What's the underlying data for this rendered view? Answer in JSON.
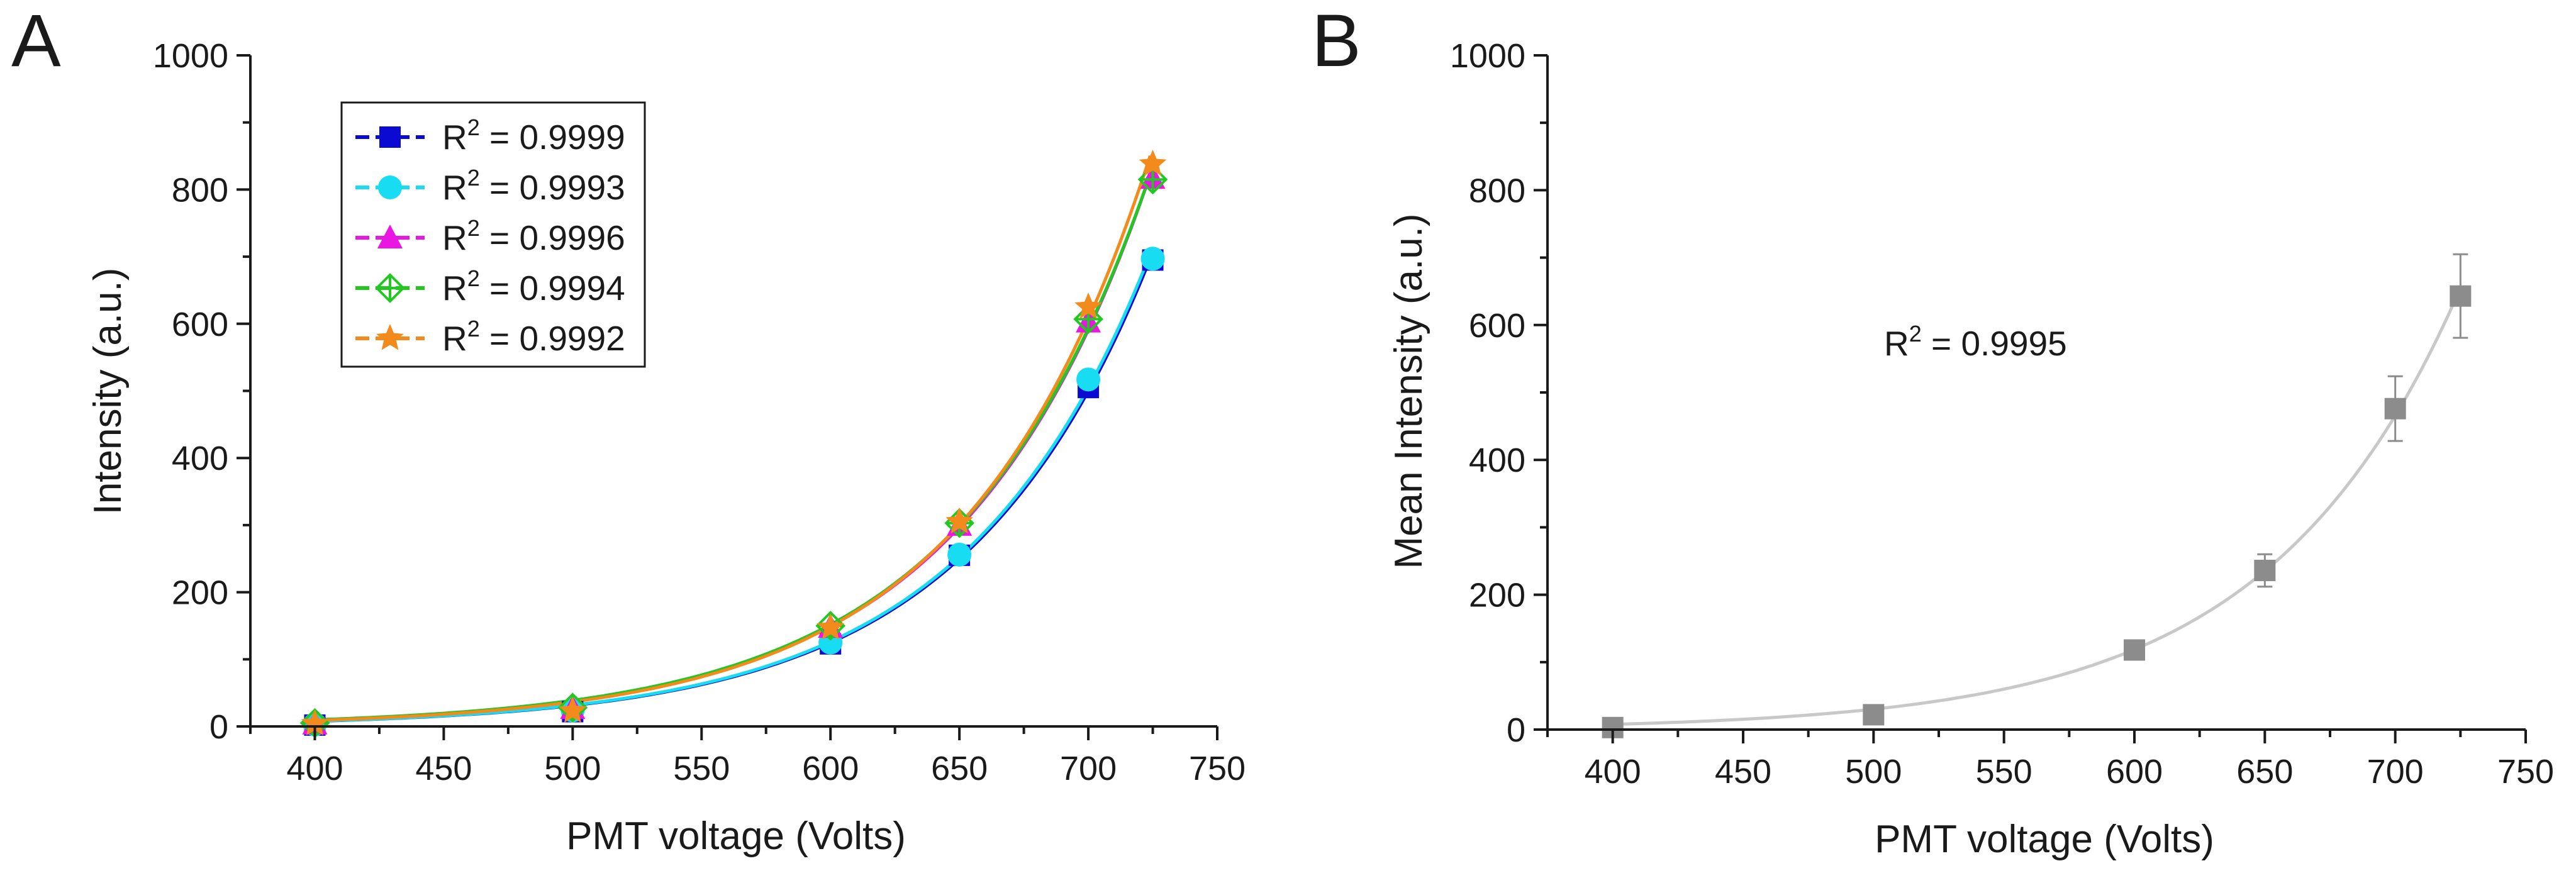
{
  "figure": {
    "panels": [
      "A",
      "B"
    ]
  },
  "chart_data": [
    {
      "panel": "A",
      "type": "scatter",
      "xlabel": "PMT voltage (Volts)",
      "ylabel": "Intensity (a.u.)",
      "xlim": [
        375,
        750
      ],
      "ylim": [
        0,
        1000
      ],
      "xticks": [
        400,
        450,
        500,
        550,
        600,
        650,
        700,
        750
      ],
      "yticks": [
        0,
        200,
        400,
        600,
        800,
        1000
      ],
      "legend_position": "top-left",
      "grid": false,
      "fit_curves": true,
      "x": [
        400,
        500,
        600,
        650,
        700,
        725
      ],
      "series": [
        {
          "name": "R² = 0.9999",
          "r2": "0.9999",
          "marker": "square",
          "color": "#0a0ad2",
          "values": [
            2,
            22,
            123,
            255,
            505,
            695
          ]
        },
        {
          "name": "R² = 0.9993",
          "r2": "0.9993",
          "marker": "circle",
          "color": "#18dcf2",
          "values": [
            3,
            24,
            125,
            256,
            517,
            697
          ]
        },
        {
          "name": "R² = 0.9996",
          "r2": "0.9996",
          "marker": "triangle",
          "color": "#ea17e2",
          "values": [
            4,
            27,
            148,
            300,
            603,
            817
          ]
        },
        {
          "name": "R² = 0.9994",
          "r2": "0.9994",
          "marker": "crossed-diamond",
          "color": "#22c722",
          "values": [
            5,
            28,
            150,
            303,
            607,
            815
          ]
        },
        {
          "name": "R² = 0.9992",
          "r2": "0.9992",
          "marker": "star",
          "color": "#f28a1c",
          "values": [
            4,
            23,
            147,
            305,
            625,
            838
          ]
        }
      ]
    },
    {
      "panel": "B",
      "type": "scatter",
      "xlabel": "PMT voltage (Volts)",
      "ylabel": "Mean Intensity (a.u.)",
      "xlim": [
        375,
        750
      ],
      "ylim": [
        0,
        1000
      ],
      "xticks": [
        400,
        450,
        500,
        550,
        600,
        650,
        700,
        750
      ],
      "yticks": [
        0,
        200,
        400,
        600,
        800,
        1000
      ],
      "grid": false,
      "fit_curves": true,
      "annotation": "R² = 0.9995",
      "annotation_r2": "0.9995",
      "x": [
        400,
        500,
        600,
        650,
        700,
        725
      ],
      "series": [
        {
          "name": "",
          "marker": "square",
          "color": "#8c8c8c",
          "fit_color": "#c8c8c8",
          "values": [
            3,
            22,
            118,
            236,
            476,
            643
          ],
          "error": [
            2,
            4,
            8,
            24,
            48,
            62
          ]
        }
      ]
    }
  ]
}
